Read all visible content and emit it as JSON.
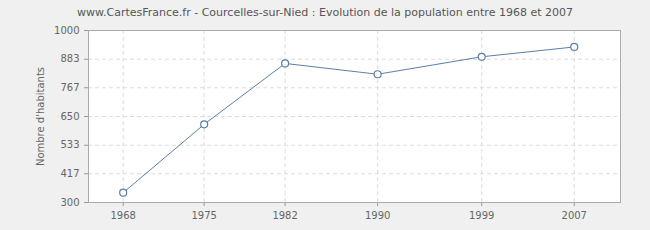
{
  "chart_data": {
    "type": "line",
    "title": "www.CartesFrance.fr - Courcelles-sur-Nied : Evolution de la population entre 1968 et 2007",
    "y_label": "Nombre d'habitants",
    "x": [
      1968,
      1975,
      1982,
      1990,
      1999,
      2007
    ],
    "values": [
      340,
      618,
      866,
      822,
      893,
      933
    ],
    "color": "#5b7fa8",
    "marker": "circle",
    "xlim": [
      1965,
      2011
    ],
    "xticks": [
      1968,
      1975,
      1982,
      1990,
      1999,
      2007
    ],
    "ylim": [
      300,
      1000
    ],
    "yticks": [
      300,
      417,
      533,
      650,
      767,
      883,
      1000
    ],
    "grid": true
  }
}
